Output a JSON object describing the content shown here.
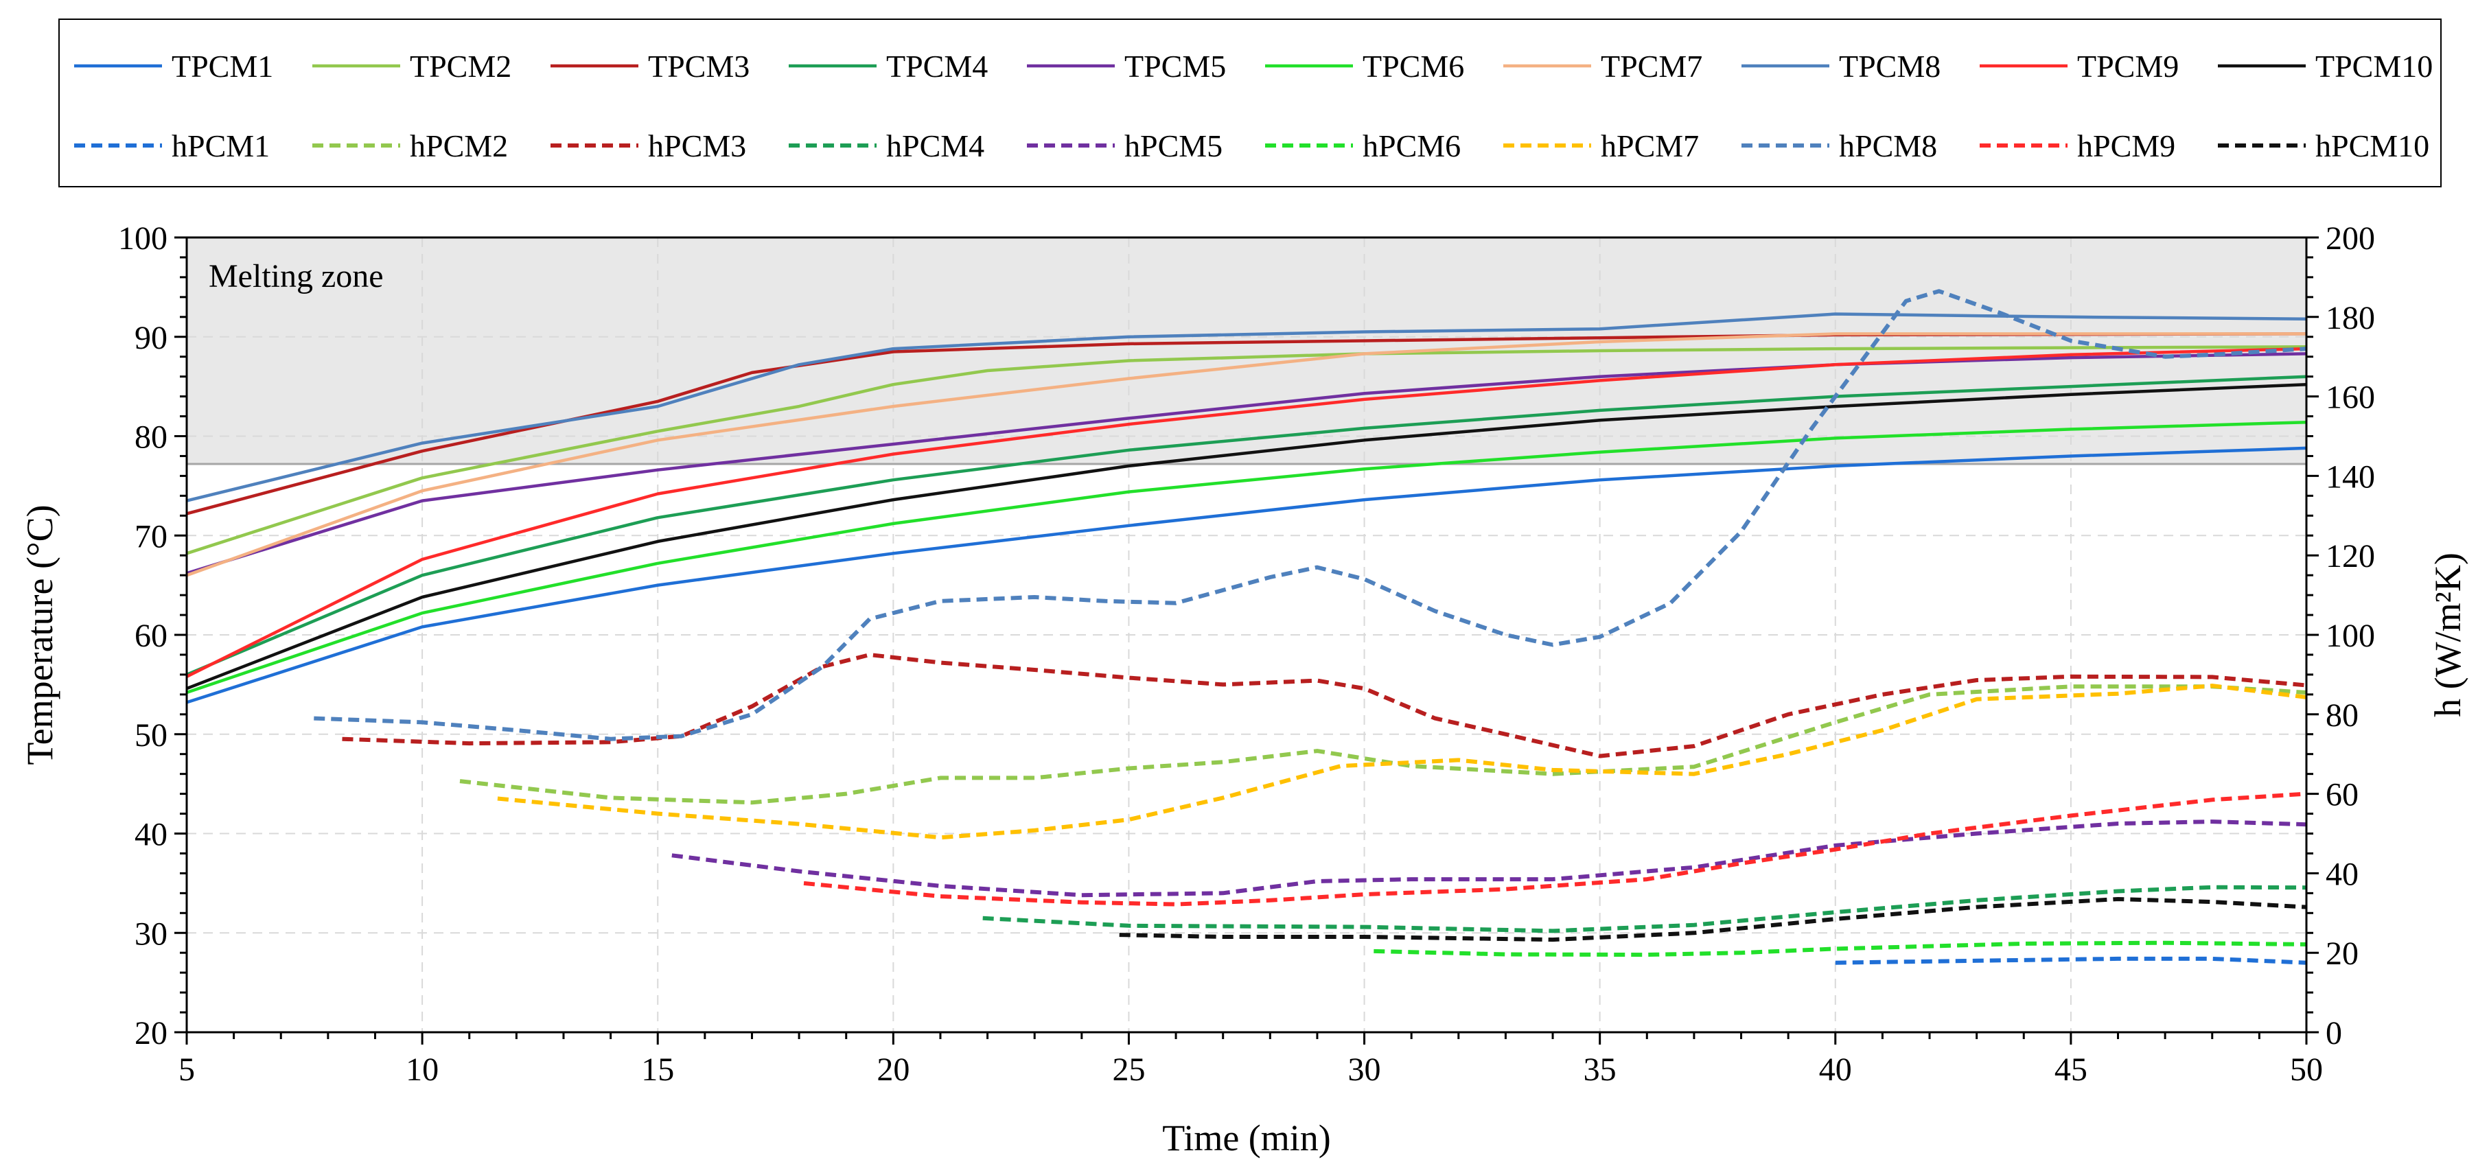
{
  "chart_data": {
    "type": "line",
    "title": "",
    "xlabel": "Time (min)",
    "ylabel_left": "Temperature (°C)",
    "ylabel_right": "h (W/m²K)",
    "xlim": [
      5,
      50
    ],
    "ylim_left": [
      20,
      100
    ],
    "ylim_right": [
      0,
      200
    ],
    "x_ticks": [
      5,
      10,
      15,
      20,
      25,
      30,
      35,
      40,
      45,
      50
    ],
    "y_left_ticks": [
      20,
      30,
      40,
      50,
      60,
      70,
      80,
      90,
      100
    ],
    "y_right_ticks": [
      0,
      20,
      40,
      60,
      80,
      100,
      120,
      140,
      160,
      180,
      200
    ],
    "grid": true,
    "legend_position": "top",
    "annotation": {
      "text": "Melting zone",
      "y_min": 77.2,
      "y_max": 100,
      "fill": "#e8e8e8"
    },
    "series": [
      {
        "name": "TPCM1",
        "axis": "left",
        "style": "solid",
        "color": "#1f6fd6",
        "points": [
          [
            5,
            53.2
          ],
          [
            10,
            60.8
          ],
          [
            15,
            65
          ],
          [
            20,
            68.2
          ],
          [
            25,
            71
          ],
          [
            30,
            73.6
          ],
          [
            35,
            75.6
          ],
          [
            40,
            77
          ],
          [
            45,
            78
          ],
          [
            50,
            78.8
          ]
        ]
      },
      {
        "name": "TPCM2",
        "axis": "left",
        "style": "solid",
        "color": "#92c84e",
        "points": [
          [
            5,
            68.2
          ],
          [
            10,
            75.8
          ],
          [
            15,
            80.5
          ],
          [
            18,
            83
          ],
          [
            20,
            85.2
          ],
          [
            22,
            86.6
          ],
          [
            25,
            87.6
          ],
          [
            30,
            88.3
          ],
          [
            35,
            88.6
          ],
          [
            40,
            88.8
          ],
          [
            50,
            89
          ]
        ]
      },
      {
        "name": "TPCM3",
        "axis": "left",
        "style": "solid",
        "color": "#b81f1f",
        "points": [
          [
            5,
            72.2
          ],
          [
            10,
            78.5
          ],
          [
            15,
            83.5
          ],
          [
            17,
            86.4
          ],
          [
            20,
            88.5
          ],
          [
            25,
            89.3
          ],
          [
            30,
            89.6
          ],
          [
            35,
            89.9
          ],
          [
            40,
            90.2
          ],
          [
            50,
            90.3
          ]
        ]
      },
      {
        "name": "TPCM4",
        "axis": "left",
        "style": "solid",
        "color": "#1d9e55",
        "points": [
          [
            5,
            56
          ],
          [
            10,
            66
          ],
          [
            15,
            71.8
          ],
          [
            20,
            75.6
          ],
          [
            25,
            78.6
          ],
          [
            30,
            80.8
          ],
          [
            35,
            82.6
          ],
          [
            40,
            84
          ],
          [
            45,
            85
          ],
          [
            50,
            86
          ]
        ]
      },
      {
        "name": "TPCM5",
        "axis": "left",
        "style": "solid",
        "color": "#7030a0",
        "points": [
          [
            5,
            66.2
          ],
          [
            10,
            73.5
          ],
          [
            15,
            76.6
          ],
          [
            20,
            79.2
          ],
          [
            25,
            81.8
          ],
          [
            30,
            84.3
          ],
          [
            35,
            86
          ],
          [
            40,
            87.2
          ],
          [
            45,
            87.9
          ],
          [
            50,
            88.3
          ]
        ]
      },
      {
        "name": "TPCM6",
        "axis": "left",
        "style": "solid",
        "color": "#22e02a",
        "points": [
          [
            5,
            54.2
          ],
          [
            10,
            62.2
          ],
          [
            15,
            67.2
          ],
          [
            20,
            71.2
          ],
          [
            25,
            74.4
          ],
          [
            30,
            76.7
          ],
          [
            35,
            78.4
          ],
          [
            40,
            79.8
          ],
          [
            45,
            80.7
          ],
          [
            50,
            81.4
          ]
        ]
      },
      {
        "name": "TPCM7",
        "axis": "left",
        "style": "solid",
        "color": "#f4b183",
        "points": [
          [
            5,
            66
          ],
          [
            10,
            74.5
          ],
          [
            15,
            79.6
          ],
          [
            20,
            83
          ],
          [
            25,
            85.8
          ],
          [
            30,
            88.3
          ],
          [
            35,
            89.5
          ],
          [
            40,
            90.3
          ],
          [
            50,
            90.3
          ]
        ]
      },
      {
        "name": "TPCM8",
        "axis": "left",
        "style": "solid",
        "color": "#4f81bd",
        "points": [
          [
            5,
            73.5
          ],
          [
            10,
            79.3
          ],
          [
            15,
            83
          ],
          [
            18,
            87.2
          ],
          [
            20,
            88.8
          ],
          [
            25,
            90
          ],
          [
            30,
            90.5
          ],
          [
            35,
            90.8
          ],
          [
            40,
            92.3
          ],
          [
            45,
            92
          ],
          [
            50,
            91.8
          ]
        ]
      },
      {
        "name": "TPCM9",
        "axis": "left",
        "style": "solid",
        "color": "#ff2a2a",
        "points": [
          [
            5,
            55.8
          ],
          [
            10,
            67.6
          ],
          [
            15,
            74.2
          ],
          [
            20,
            78.2
          ],
          [
            25,
            81.2
          ],
          [
            30,
            83.7
          ],
          [
            35,
            85.6
          ],
          [
            40,
            87.2
          ],
          [
            45,
            88.2
          ],
          [
            50,
            88.8
          ]
        ]
      },
      {
        "name": "TPCM10",
        "axis": "left",
        "style": "solid",
        "color": "#111111",
        "points": [
          [
            5,
            54.6
          ],
          [
            10,
            63.8
          ],
          [
            15,
            69.4
          ],
          [
            20,
            73.6
          ],
          [
            25,
            77
          ],
          [
            30,
            79.6
          ],
          [
            35,
            81.6
          ],
          [
            40,
            83
          ],
          [
            45,
            84.2
          ],
          [
            50,
            85.2
          ]
        ]
      },
      {
        "name": "hPCM1",
        "axis": "right",
        "style": "dashed",
        "color": "#1f6fd6",
        "points": [
          [
            40,
            17.5
          ],
          [
            43,
            18
          ],
          [
            46,
            18.5
          ],
          [
            48,
            18.5
          ],
          [
            50,
            17.5
          ]
        ]
      },
      {
        "name": "hPCM2",
        "axis": "right",
        "style": "dashed",
        "color": "#92c84e",
        "points": [
          [
            10.8,
            63.2
          ],
          [
            14,
            59
          ],
          [
            17,
            57.8
          ],
          [
            19,
            60
          ],
          [
            21,
            64
          ],
          [
            23,
            64
          ],
          [
            25,
            66.4
          ],
          [
            27,
            68
          ],
          [
            29,
            70.8
          ],
          [
            31,
            67
          ],
          [
            34,
            65
          ],
          [
            37,
            66.8
          ],
          [
            40,
            78
          ],
          [
            42,
            85
          ],
          [
            45,
            87
          ],
          [
            48,
            87
          ],
          [
            50,
            85.5
          ]
        ]
      },
      {
        "name": "hPCM3",
        "axis": "right",
        "style": "dashed",
        "color": "#b81f1f",
        "points": [
          [
            8.3,
            73.8
          ],
          [
            11,
            72.7
          ],
          [
            14,
            73
          ],
          [
            15.5,
            74.5
          ],
          [
            17,
            82
          ],
          [
            18.5,
            92
          ],
          [
            19.5,
            95
          ],
          [
            21,
            93
          ],
          [
            23,
            91.2
          ],
          [
            25,
            89.2
          ],
          [
            27,
            87.5
          ],
          [
            29,
            88.5
          ],
          [
            30,
            86.5
          ],
          [
            31.5,
            79
          ],
          [
            33,
            75
          ],
          [
            35,
            69.5
          ],
          [
            37,
            72
          ],
          [
            39,
            80
          ],
          [
            41,
            85
          ],
          [
            43,
            88.6
          ],
          [
            45,
            89.5
          ],
          [
            48,
            89.4
          ],
          [
            50,
            87.3
          ]
        ]
      },
      {
        "name": "hPCM4",
        "axis": "right",
        "style": "dashed",
        "color": "#1d9e55",
        "points": [
          [
            21.9,
            28.7
          ],
          [
            25,
            26.8
          ],
          [
            30,
            26.5
          ],
          [
            34,
            25.5
          ],
          [
            37,
            27
          ],
          [
            40,
            30.2
          ],
          [
            43,
            33.2
          ],
          [
            46,
            35.5
          ],
          [
            48,
            36.5
          ],
          [
            50,
            36.4
          ]
        ]
      },
      {
        "name": "hPCM5",
        "axis": "right",
        "style": "dashed",
        "color": "#7030a0",
        "points": [
          [
            15.3,
            44.5
          ],
          [
            18,
            40.5
          ],
          [
            21,
            36.8
          ],
          [
            24,
            34.5
          ],
          [
            27,
            35
          ],
          [
            29,
            38
          ],
          [
            31,
            38.5
          ],
          [
            34,
            38.5
          ],
          [
            37,
            41.5
          ],
          [
            40,
            47
          ],
          [
            43,
            50
          ],
          [
            46,
            52.5
          ],
          [
            48,
            53
          ],
          [
            50,
            52.3
          ]
        ]
      },
      {
        "name": "hPCM6",
        "axis": "right",
        "style": "dashed",
        "color": "#22e02a",
        "points": [
          [
            30.2,
            20.4
          ],
          [
            33,
            19.6
          ],
          [
            36,
            19.5
          ],
          [
            38,
            20
          ],
          [
            40,
            21
          ],
          [
            44,
            22.3
          ],
          [
            47,
            22.5
          ],
          [
            50,
            22.1
          ]
        ]
      },
      {
        "name": "hPCM7",
        "axis": "right",
        "style": "dashed",
        "color": "#ffc000",
        "points": [
          [
            11.6,
            58.8
          ],
          [
            15,
            55
          ],
          [
            18,
            52.4
          ],
          [
            21,
            49
          ],
          [
            23,
            50.8
          ],
          [
            25,
            53.5
          ],
          [
            27,
            59
          ],
          [
            29.5,
            67
          ],
          [
            32,
            68.5
          ],
          [
            34,
            66
          ],
          [
            37,
            65
          ],
          [
            39,
            70
          ],
          [
            41,
            76
          ],
          [
            43,
            83.8
          ],
          [
            46,
            85.2
          ],
          [
            48,
            87.2
          ],
          [
            50,
            84.3
          ]
        ]
      },
      {
        "name": "hPCM8",
        "axis": "right",
        "style": "dashed",
        "color": "#4f81bd",
        "points": [
          [
            7.7,
            79
          ],
          [
            10,
            78
          ],
          [
            12,
            76
          ],
          [
            14,
            73.8
          ],
          [
            15.5,
            74.5
          ],
          [
            17,
            80
          ],
          [
            18.5,
            92
          ],
          [
            19.5,
            104
          ],
          [
            21,
            108.5
          ],
          [
            23,
            109.5
          ],
          [
            24.5,
            108.5
          ],
          [
            26,
            108
          ],
          [
            28,
            114.5
          ],
          [
            29,
            117
          ],
          [
            30,
            114
          ],
          [
            31.5,
            106
          ],
          [
            33,
            100
          ],
          [
            34,
            97.5
          ],
          [
            35,
            99.5
          ],
          [
            36.5,
            108
          ],
          [
            38,
            126
          ],
          [
            39.5,
            152
          ],
          [
            40.5,
            168
          ],
          [
            41.5,
            184
          ],
          [
            42.2,
            186.5
          ],
          [
            43.5,
            181
          ],
          [
            45,
            174
          ],
          [
            46,
            172
          ],
          [
            47,
            170
          ],
          [
            48,
            170.5
          ],
          [
            50,
            172
          ]
        ]
      },
      {
        "name": "hPCM9",
        "axis": "right",
        "style": "dashed",
        "color": "#ff2a2a",
        "points": [
          [
            18.1,
            37.5
          ],
          [
            21,
            34.2
          ],
          [
            24,
            32.7
          ],
          [
            26,
            32.2
          ],
          [
            28,
            33.2
          ],
          [
            30,
            34.7
          ],
          [
            33,
            36
          ],
          [
            36,
            38.5
          ],
          [
            38,
            42.5
          ],
          [
            40,
            46
          ],
          [
            42,
            50
          ],
          [
            45,
            54.5
          ],
          [
            48,
            58.5
          ],
          [
            50,
            60
          ]
        ]
      },
      {
        "name": "hPCM10",
        "axis": "right",
        "style": "dashed",
        "color": "#111111",
        "points": [
          [
            24.8,
            24.5
          ],
          [
            27,
            24
          ],
          [
            30,
            24
          ],
          [
            34,
            23.3
          ],
          [
            37,
            25
          ],
          [
            40,
            28.5
          ],
          [
            43,
            31.5
          ],
          [
            46,
            33.5
          ],
          [
            48,
            32.8
          ],
          [
            50,
            31.5
          ]
        ]
      }
    ]
  }
}
